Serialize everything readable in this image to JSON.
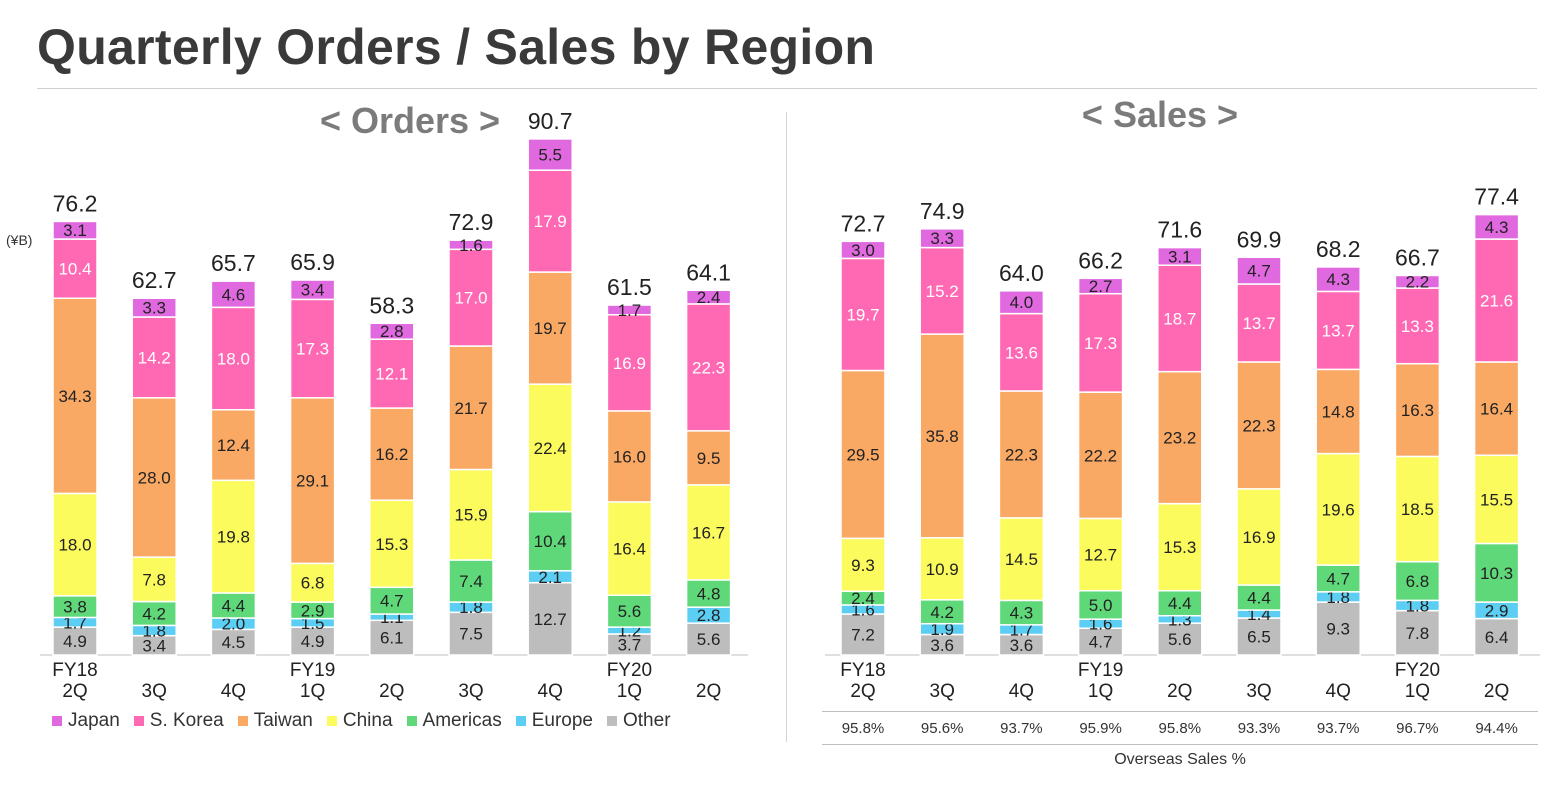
{
  "page": {
    "title": "Quarterly Orders / Sales by Region"
  },
  "colors": {
    "Japan": "#e069e0",
    "S. Korea": "#ff69b4",
    "Taiwan": "#f9a964",
    "China": "#fbfb5e",
    "Americas": "#5fd87a",
    "Europe": "#5ccdf3",
    "Other": "#bdbdbd"
  },
  "legend": [
    {
      "name": "Japan",
      "icon": "square-swatch"
    },
    {
      "name": "S. Korea",
      "icon": "square-swatch"
    },
    {
      "name": "Taiwan",
      "icon": "square-swatch"
    },
    {
      "name": "China",
      "icon": "square-swatch"
    },
    {
      "name": "Americas",
      "icon": "square-swatch"
    },
    {
      "name": "Europe",
      "icon": "square-swatch"
    },
    {
      "name": "Other",
      "icon": "square-swatch"
    }
  ],
  "chart_data": [
    {
      "type": "bar",
      "stacked": true,
      "title": "< Orders >",
      "unit": "(¥B)",
      "categories": [
        [
          "FY18",
          "2Q"
        ],
        [
          "",
          "3Q"
        ],
        [
          "",
          "4Q"
        ],
        [
          "FY19",
          "1Q"
        ],
        [
          "",
          "2Q"
        ],
        [
          "",
          "3Q"
        ],
        [
          "",
          "4Q"
        ],
        [
          "FY20",
          "1Q"
        ],
        [
          "",
          "2Q"
        ]
      ],
      "totals": [
        "76.2",
        "62.7",
        "65.7",
        "65.9",
        "58.3",
        "72.9",
        "90.7",
        "61.5",
        "64.1"
      ],
      "series": [
        {
          "name": "Other",
          "values": [
            4.9,
            3.4,
            4.5,
            4.9,
            6.1,
            7.5,
            12.7,
            3.7,
            5.6
          ]
        },
        {
          "name": "Europe",
          "values": [
            1.7,
            1.8,
            2.0,
            1.5,
            1.1,
            1.8,
            2.1,
            1.2,
            2.8
          ]
        },
        {
          "name": "Americas",
          "values": [
            3.8,
            4.2,
            4.4,
            2.9,
            4.7,
            7.4,
            10.4,
            5.6,
            4.8
          ]
        },
        {
          "name": "China",
          "values": [
            18.0,
            7.8,
            19.8,
            6.8,
            15.3,
            15.9,
            22.4,
            16.4,
            16.7
          ]
        },
        {
          "name": "Taiwan",
          "values": [
            34.3,
            28.0,
            12.4,
            29.1,
            16.2,
            21.7,
            19.7,
            16.0,
            9.5
          ]
        },
        {
          "name": "S. Korea",
          "values": [
            10.4,
            14.2,
            18.0,
            17.3,
            12.1,
            17.0,
            17.9,
            16.9,
            22.3
          ]
        },
        {
          "name": "Japan",
          "values": [
            3.1,
            3.3,
            4.6,
            3.4,
            2.8,
            1.6,
            5.5,
            1.7,
            2.4
          ]
        }
      ]
    },
    {
      "type": "bar",
      "stacked": true,
      "title": "< Sales >",
      "categories": [
        [
          "FY18",
          "2Q"
        ],
        [
          "",
          "3Q"
        ],
        [
          "",
          "4Q"
        ],
        [
          "FY19",
          "1Q"
        ],
        [
          "",
          "2Q"
        ],
        [
          "",
          "3Q"
        ],
        [
          "",
          "4Q"
        ],
        [
          "FY20",
          "1Q"
        ],
        [
          "",
          "2Q"
        ]
      ],
      "totals": [
        "72.7",
        "74.9",
        "64.0",
        "66.2",
        "71.6",
        "69.9",
        "68.2",
        "66.7",
        "77.4"
      ],
      "series": [
        {
          "name": "Other",
          "values": [
            7.2,
            3.6,
            3.6,
            4.7,
            5.6,
            6.5,
            9.3,
            7.8,
            6.4
          ]
        },
        {
          "name": "Europe",
          "values": [
            1.6,
            1.9,
            1.7,
            1.6,
            1.3,
            1.4,
            1.8,
            1.8,
            2.9
          ]
        },
        {
          "name": "Americas",
          "values": [
            2.4,
            4.2,
            4.3,
            5.0,
            4.4,
            4.4,
            4.7,
            6.8,
            10.3
          ]
        },
        {
          "name": "China",
          "values": [
            9.3,
            10.9,
            14.5,
            12.7,
            15.3,
            16.9,
            19.6,
            18.5,
            15.5
          ]
        },
        {
          "name": "Taiwan",
          "values": [
            29.5,
            35.8,
            22.3,
            22.2,
            23.2,
            22.3,
            14.8,
            16.3,
            16.4
          ]
        },
        {
          "name": "S. Korea",
          "values": [
            19.7,
            15.2,
            13.6,
            17.3,
            18.7,
            13.7,
            13.7,
            13.3,
            21.6
          ]
        },
        {
          "name": "Japan",
          "values": [
            3.0,
            3.3,
            4.0,
            2.7,
            3.1,
            4.7,
            4.3,
            2.2,
            4.3
          ]
        }
      ],
      "overseas_label": "Overseas Sales %",
      "overseas_pct": [
        "95.8%",
        "95.6%",
        "93.7%",
        "95.9%",
        "95.8%",
        "93.3%",
        "93.7%",
        "96.7%",
        "94.4%"
      ]
    }
  ]
}
